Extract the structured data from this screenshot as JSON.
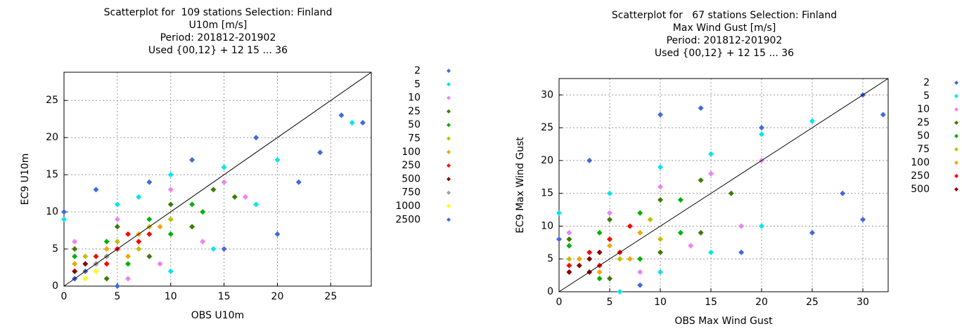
{
  "chart_data": [
    {
      "type": "scatter",
      "title": [
        "Scatterplot for  109 stations Selection: Finland",
        "U10m [m/s]",
        "Period: 201812-201902",
        "Used {00,12} + 12 15 ... 36"
      ],
      "x_label": "OBS U10m",
      "y_label": "EC9 U10m",
      "xlim": [
        0,
        28.8
      ],
      "ylim": [
        0,
        28.8
      ],
      "xticks": [
        0,
        5,
        10,
        15,
        20,
        25
      ],
      "yticks": [
        0,
        5,
        10,
        15,
        20,
        25
      ],
      "grid": true,
      "diagonal": true,
      "legend": "right",
      "series": [
        {
          "name": "2",
          "color": "#4169e1",
          "x": [
            26,
            28,
            22,
            20,
            3,
            0,
            12,
            18,
            15,
            8,
            24,
            5
          ],
          "y": [
            23,
            22,
            14,
            7,
            13,
            10,
            17,
            20,
            5,
            14,
            18,
            0
          ]
        },
        {
          "name": "5",
          "color": "#00e5ee",
          "x": [
            0,
            5,
            10,
            15,
            20,
            27,
            14,
            10,
            18,
            7
          ],
          "y": [
            9,
            11,
            15,
            16,
            17,
            22,
            5,
            2,
            11,
            12
          ]
        },
        {
          "name": "10",
          "color": "#ee82ee",
          "x": [
            1,
            5,
            10,
            15,
            13,
            9,
            17,
            6
          ],
          "y": [
            6,
            9,
            13,
            14,
            6,
            3,
            12,
            1
          ]
        },
        {
          "name": "25",
          "color": "#3a7d00",
          "x": [
            1,
            5,
            10,
            14,
            12,
            8,
            4,
            16
          ],
          "y": [
            5,
            8,
            11,
            13,
            8,
            4,
            1,
            12
          ]
        },
        {
          "name": "50",
          "color": "#00b000",
          "x": [
            1,
            4,
            8,
            12,
            10,
            6,
            13
          ],
          "y": [
            4,
            6,
            9,
            11,
            7,
            3,
            10
          ]
        },
        {
          "name": "75",
          "color": "#c0c000",
          "x": [
            2,
            5,
            8,
            7,
            10
          ],
          "y": [
            4,
            6,
            8,
            5,
            9
          ]
        },
        {
          "name": "100",
          "color": "#f0a800",
          "x": [
            1,
            4,
            7,
            9,
            6
          ],
          "y": [
            3,
            5,
            7,
            8,
            4
          ]
        },
        {
          "name": "250",
          "color": "#ff0000",
          "x": [
            1,
            3,
            5,
            7,
            6,
            4,
            8
          ],
          "y": [
            2,
            4,
            5,
            6,
            7,
            3,
            7
          ]
        },
        {
          "name": "500",
          "color": "#8b0000",
          "x": [
            1,
            2,
            3,
            1,
            4
          ],
          "y": [
            2,
            3,
            3,
            1,
            4
          ]
        },
        {
          "name": "750",
          "color": "#a0a0a0",
          "x": [
            2,
            3,
            4
          ],
          "y": [
            2,
            3,
            4
          ]
        },
        {
          "name": "1000",
          "color": "#ffff00",
          "x": [
            2,
            2,
            3
          ],
          "y": [
            1,
            2,
            2
          ]
        },
        {
          "name": "2500",
          "color": "#4169e1",
          "x": [
            1,
            2
          ],
          "y": [
            1,
            2
          ]
        }
      ]
    },
    {
      "type": "scatter",
      "title": [
        "Scatterplot for   67 stations Selection: Finland",
        "Max Wind Gust [m/s]",
        "Period: 201812-201902",
        "Used {00,12} + 12 15 ... 36"
      ],
      "x_label": "OBS Max Wind Gust",
      "y_label": "EC9 Max Wind Gust",
      "xlim": [
        0,
        32.5
      ],
      "ylim": [
        0,
        32.5
      ],
      "xticks": [
        0,
        5,
        10,
        15,
        20,
        25,
        30
      ],
      "yticks": [
        0,
        5,
        10,
        15,
        20,
        25,
        30
      ],
      "grid": true,
      "diagonal": true,
      "legend": "right",
      "series": [
        {
          "name": "2",
          "color": "#4169e1",
          "x": [
            3,
            10,
            14,
            30,
            32,
            30,
            25,
            18,
            8,
            0,
            20,
            28
          ],
          "y": [
            20,
            27,
            28,
            30,
            27,
            11,
            9,
            6,
            1,
            8,
            25,
            15
          ]
        },
        {
          "name": "5",
          "color": "#00e5ee",
          "x": [
            0,
            5,
            10,
            15,
            20,
            25,
            20,
            15,
            10,
            6
          ],
          "y": [
            12,
            15,
            19,
            21,
            24,
            26,
            10,
            6,
            3,
            0
          ]
        },
        {
          "name": "10",
          "color": "#ee82ee",
          "x": [
            1,
            5,
            10,
            15,
            20,
            18,
            13,
            8
          ],
          "y": [
            9,
            12,
            16,
            18,
            20,
            10,
            7,
            3
          ]
        },
        {
          "name": "25",
          "color": "#3a7d00",
          "x": [
            1,
            5,
            10,
            14,
            17,
            14,
            10,
            5
          ],
          "y": [
            8,
            11,
            14,
            17,
            15,
            9,
            6,
            2
          ]
        },
        {
          "name": "50",
          "color": "#00b000",
          "x": [
            1,
            4,
            8,
            12,
            12,
            8,
            4
          ],
          "y": [
            7,
            9,
            12,
            14,
            9,
            5,
            2
          ]
        },
        {
          "name": "75",
          "color": "#c0c000",
          "x": [
            1,
            5,
            9,
            10,
            6
          ],
          "y": [
            5,
            8,
            11,
            8,
            5
          ]
        },
        {
          "name": "100",
          "color": "#f0a800",
          "x": [
            2,
            5,
            8,
            7,
            4
          ],
          "y": [
            5,
            7,
            9,
            5,
            3
          ]
        },
        {
          "name": "250",
          "color": "#ff0000",
          "x": [
            1,
            3,
            5,
            7,
            6,
            4
          ],
          "y": [
            4,
            6,
            8,
            10,
            6,
            4
          ]
        },
        {
          "name": "500",
          "color": "#8b0000",
          "x": [
            1,
            2,
            3,
            4,
            3
          ],
          "y": [
            3,
            4,
            5,
            6,
            3
          ]
        }
      ]
    }
  ]
}
